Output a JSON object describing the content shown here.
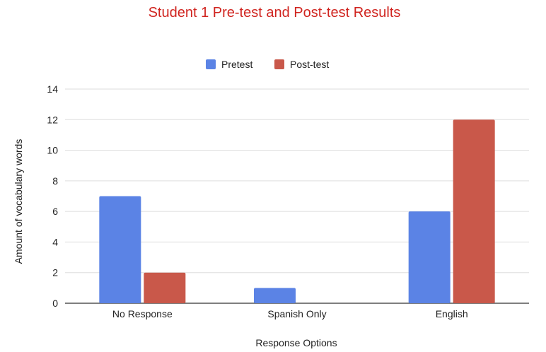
{
  "chart_data": {
    "type": "bar",
    "title": "Student 1 Pre-test and Post-test Results",
    "title_color": "#d0241f",
    "xlabel": "Response Options",
    "ylabel": "Amount of vocabulary words",
    "categories": [
      "No Response",
      "Spanish Only",
      "English"
    ],
    "series": [
      {
        "name": "Pretest",
        "color": "#5b83e5",
        "values": [
          7,
          1,
          6
        ]
      },
      {
        "name": "Post-test",
        "color": "#c9584a",
        "values": [
          2,
          0,
          12
        ]
      }
    ],
    "ylim": [
      0,
      14
    ],
    "yticks": [
      "0",
      "2",
      "4",
      "6",
      "8",
      "10",
      "12",
      "14"
    ],
    "grid": true,
    "legend_position": "top-center"
  }
}
